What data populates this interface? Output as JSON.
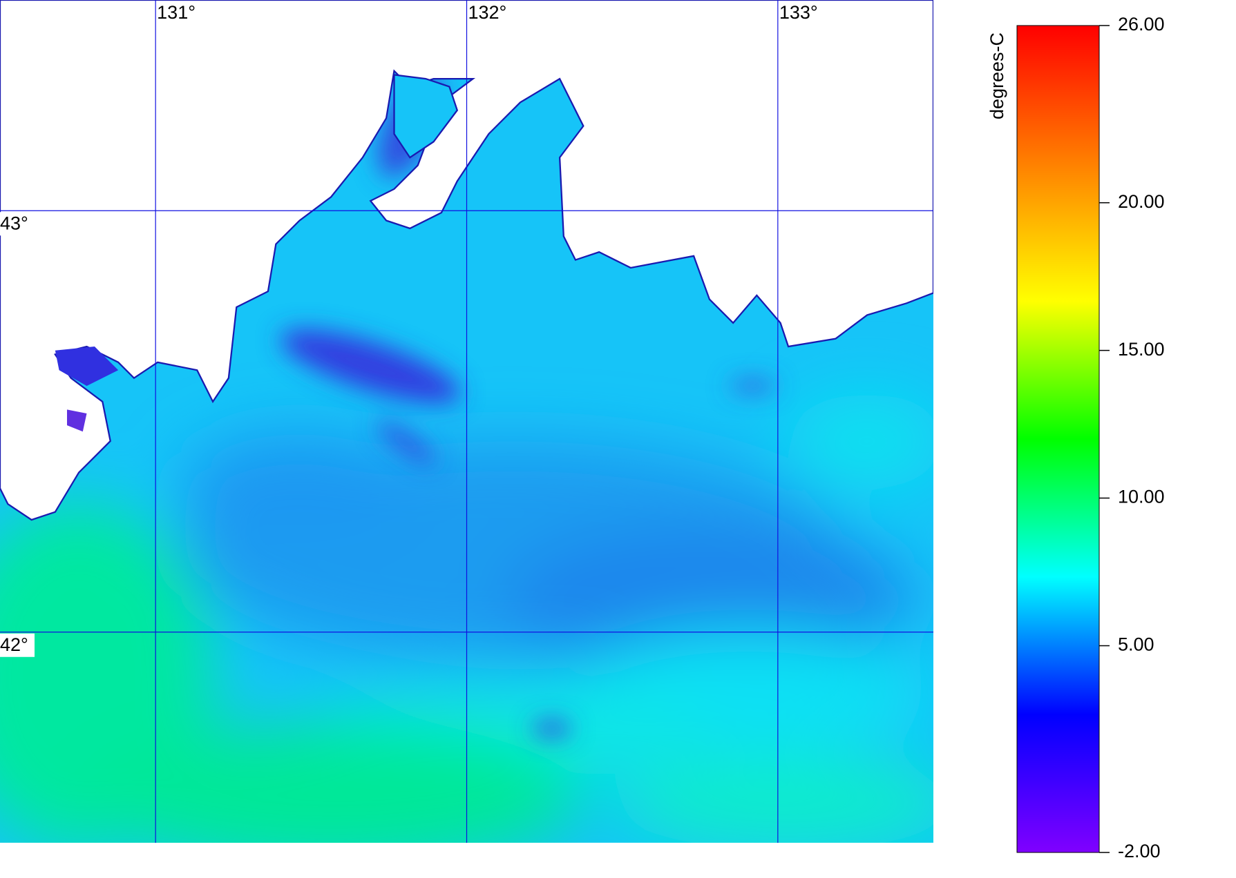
{
  "map": {
    "lonlim": [
      130.5,
      133.5
    ],
    "latlim": [
      41.5,
      43.5
    ],
    "lonticks": [
      {
        "value": 131,
        "label": "131°"
      },
      {
        "value": 132,
        "label": "132°"
      },
      {
        "value": 133,
        "label": "133°"
      }
    ],
    "latticks": [
      {
        "value": 43,
        "label": "43°"
      },
      {
        "value": 42,
        "label": "42°"
      }
    ],
    "grid_color": "#1010e0"
  },
  "colorbar": {
    "label": "degrees-C",
    "lim": [
      -2,
      26
    ],
    "ticks": [
      {
        "value": 26,
        "label": "26.00"
      },
      {
        "value": 20,
        "label": "20.00"
      },
      {
        "value": 15,
        "label": "15.00"
      },
      {
        "value": 10,
        "label": "10.00"
      },
      {
        "value": 5,
        "label": "5.00"
      },
      {
        "value": -2,
        "label": "-2.00"
      }
    ],
    "colormap": [
      "#8000ff",
      "#0000ff",
      "#00ffff",
      "#00ff00",
      "#ffff00",
      "#ff8000",
      "#ff0000"
    ]
  }
}
